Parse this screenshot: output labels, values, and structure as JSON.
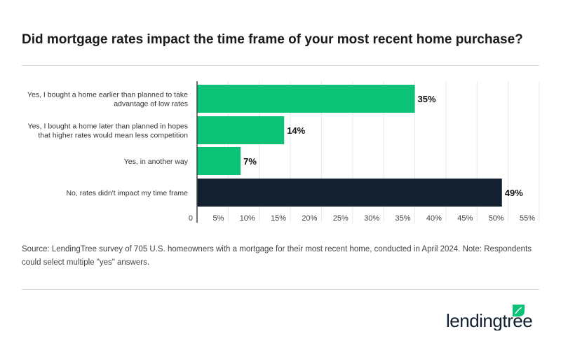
{
  "title": "Did mortgage rates impact the time frame of your most recent home purchase?",
  "source": "Source: LendingTree survey of 705 U.S. homeowners with a mortgage for their most recent home, conducted in April 2024. Note: Respondents could select multiple \"yes\" answers.",
  "logo": "lendingtree",
  "colors": {
    "green": "#0cc276",
    "navy": "#12202f"
  },
  "chart_data": {
    "type": "bar",
    "orientation": "horizontal",
    "categories": [
      [
        "Yes, I bought a home earlier than planned to take",
        "advantage of low rates"
      ],
      [
        "Yes, I bought a home later than planned in hopes",
        "that higher rates would mean less competition"
      ],
      [
        "Yes, in another way"
      ],
      [
        "No, rates didn't impact my time frame"
      ]
    ],
    "values": [
      35,
      14,
      7,
      49
    ],
    "data_labels": [
      "35%",
      "14%",
      "7%",
      "49%"
    ],
    "bar_colors": [
      "#0cc276",
      "#0cc276",
      "#0cc276",
      "#12202f"
    ],
    "xlim": [
      0,
      55
    ],
    "xticks": [
      "0",
      "5%",
      "10%",
      "15%",
      "20%",
      "25%",
      "30%",
      "35%",
      "40%",
      "45%",
      "50%",
      "55%"
    ],
    "grid": true
  }
}
